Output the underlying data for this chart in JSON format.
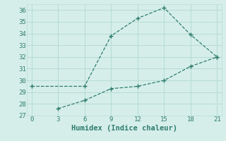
{
  "line1_x": [
    0,
    6,
    9,
    12,
    15,
    18,
    21
  ],
  "line1_y": [
    29.5,
    29.5,
    33.8,
    35.3,
    36.2,
    33.9,
    32.0
  ],
  "line2_x": [
    3,
    6,
    9,
    12,
    15,
    18,
    21
  ],
  "line2_y": [
    27.6,
    28.3,
    29.3,
    29.5,
    30.0,
    31.2,
    32.0
  ],
  "line_color": "#2e7d6e",
  "marker": "+",
  "xlabel": "Humidex (Indice chaleur)",
  "xlim": [
    -0.5,
    21.5
  ],
  "ylim": [
    27,
    36.5
  ],
  "xticks": [
    0,
    3,
    6,
    9,
    12,
    15,
    18,
    21
  ],
  "yticks": [
    27,
    28,
    29,
    30,
    31,
    32,
    33,
    34,
    35,
    36
  ],
  "bg_color": "#d6eeea",
  "grid_color": "#b8ddd6",
  "xlabel_fontsize": 7.5,
  "tick_fontsize": 6.5
}
